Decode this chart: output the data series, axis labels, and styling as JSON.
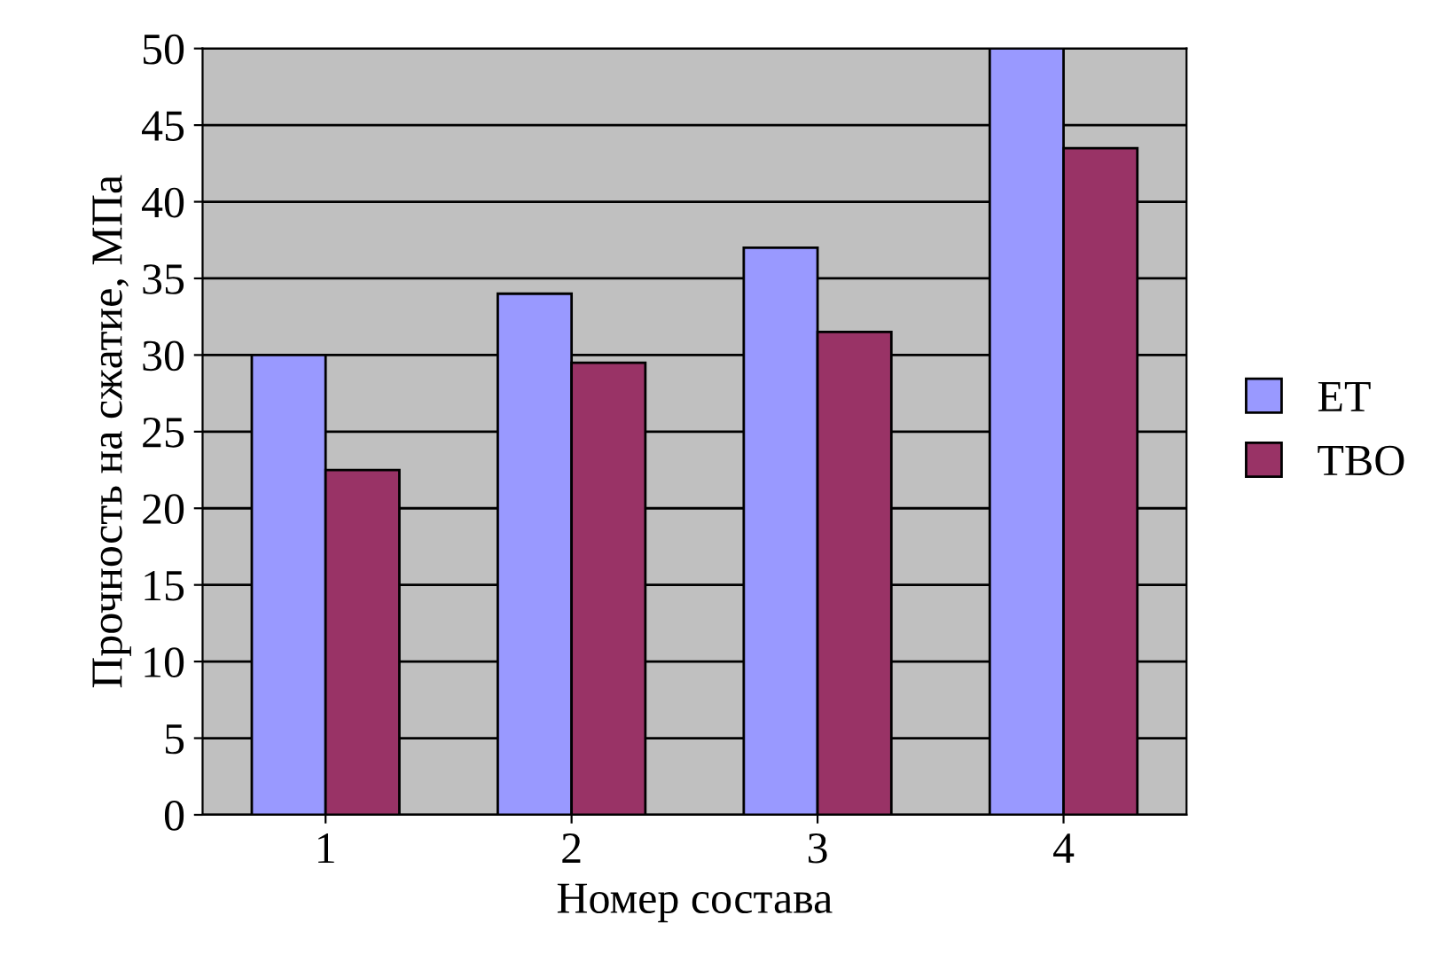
{
  "chart_data": {
    "type": "bar",
    "xlabel": "Номер состава",
    "ylabel": "Прочность на сжатие, МПа",
    "categories": [
      "1",
      "2",
      "3",
      "4"
    ],
    "series": [
      {
        "name": "ЕТ",
        "color": "#9999ff",
        "values": [
          30,
          34,
          37,
          50
        ]
      },
      {
        "name": "ТВО",
        "color": "#993366",
        "values": [
          22.5,
          29.5,
          31.5,
          43.5
        ]
      }
    ],
    "ylim": [
      0,
      50
    ],
    "yticks": [
      0,
      5,
      10,
      15,
      20,
      25,
      30,
      35,
      40,
      45,
      50
    ],
    "grid": "y",
    "legend": "right"
  }
}
